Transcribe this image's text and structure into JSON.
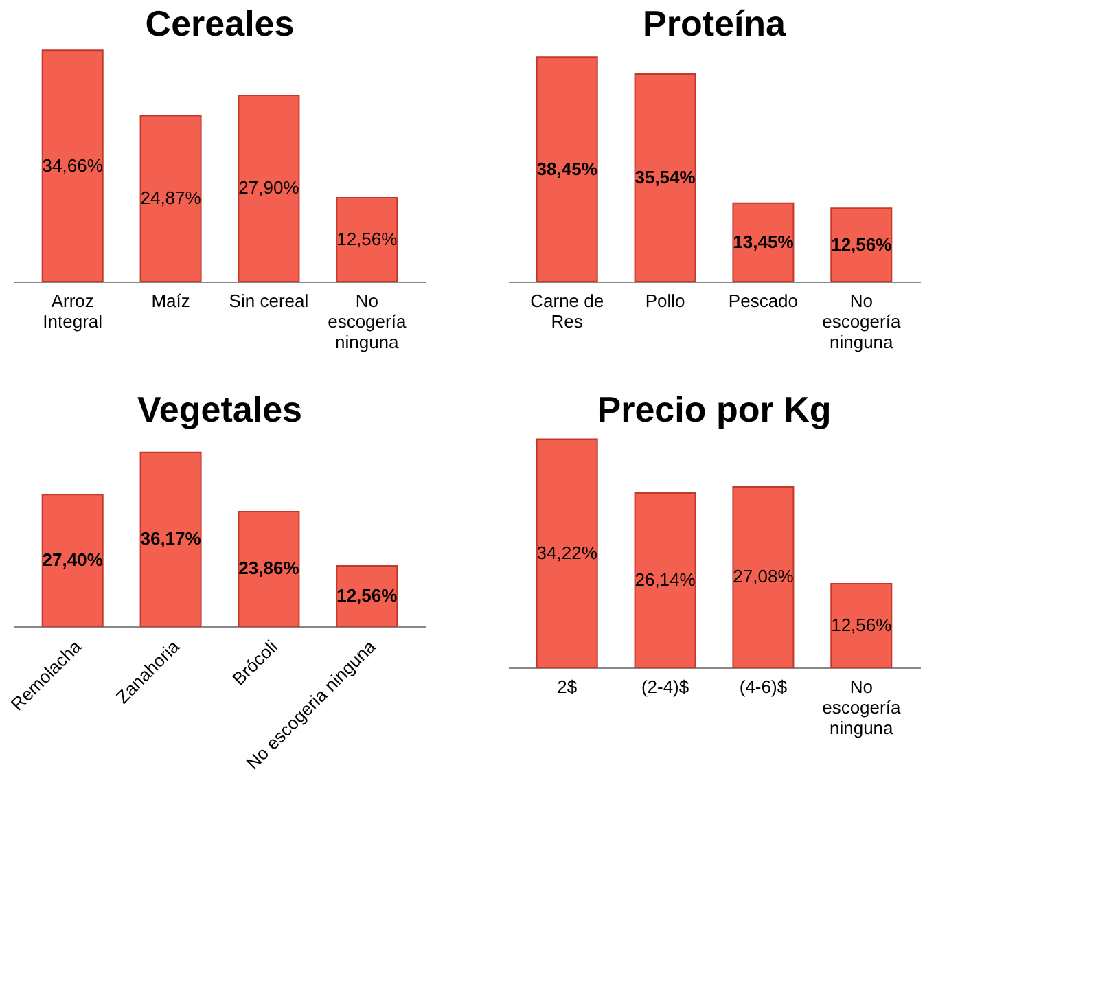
{
  "chart_data": [
    {
      "type": "bar",
      "title": "Cereales",
      "categories": [
        "Arroz Integral",
        "Maíz",
        "Sin cereal",
        "No escogería ninguna"
      ],
      "values": [
        34.66,
        24.87,
        27.9,
        12.56
      ],
      "value_labels": [
        "34,66%",
        "24,87%",
        "27,90%",
        "12,56%"
      ],
      "color": "#f4604f"
    },
    {
      "type": "bar",
      "title": "Proteína",
      "categories": [
        "Carne de Res",
        "Pollo",
        "Pescado",
        "No escogería ninguna"
      ],
      "values": [
        38.45,
        35.54,
        13.45,
        12.56
      ],
      "value_labels": [
        "38,45%",
        "35,54%",
        "13,45%",
        "12,56%"
      ],
      "color": "#f4604f"
    },
    {
      "type": "bar",
      "title": "Vegetales",
      "categories": [
        "Remolacha",
        "Zanahoria",
        "Brócoli",
        "No escogeria ninguna"
      ],
      "values": [
        27.4,
        36.17,
        23.86,
        12.56
      ],
      "value_labels": [
        "27,40%",
        "36,17%",
        "23,86%",
        "12,56%"
      ],
      "color": "#f4604f"
    },
    {
      "type": "bar",
      "title": "Precio por Kg",
      "categories": [
        "2$",
        "(2-4)$",
        "(4-6)$",
        "No escogería ninguna"
      ],
      "values": [
        34.22,
        26.14,
        27.08,
        12.56
      ],
      "value_labels": [
        "34,22%",
        "26,14%",
        "27,08%",
        "12,56%"
      ],
      "color": "#f4604f"
    }
  ]
}
